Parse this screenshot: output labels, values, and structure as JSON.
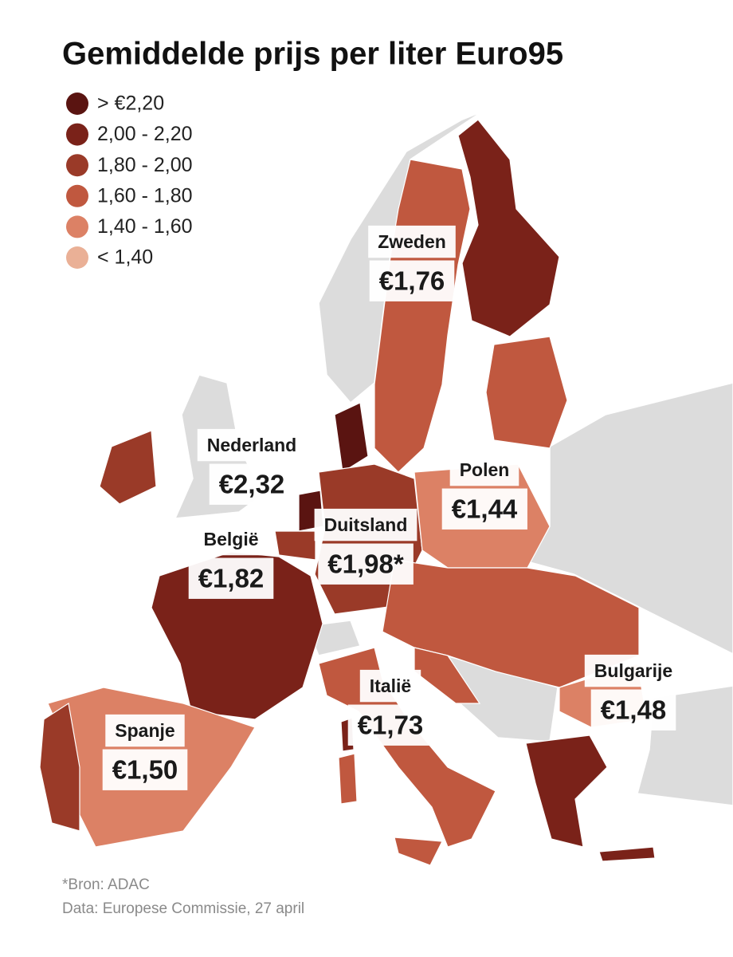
{
  "title": "Gemiddelde prijs per liter Euro95",
  "legend": [
    {
      "label": "> €2,20",
      "color": "#5a1411"
    },
    {
      "label": "2,00 - 2,20",
      "color": "#7a2219"
    },
    {
      "label": "1,80 - 2,00",
      "color": "#9a3a28"
    },
    {
      "label": "1,60 - 1,80",
      "color": "#c0583f"
    },
    {
      "label": "1,40 - 1,60",
      "color": "#dc8165"
    },
    {
      "label": "< 1,40",
      "color": "#eab096"
    }
  ],
  "labels": [
    {
      "country": "Zweden",
      "price": "€1,76"
    },
    {
      "country": "Nederland",
      "price": "€2,32"
    },
    {
      "country": "België",
      "price": "€1,82"
    },
    {
      "country": "Duitsland",
      "price": "€1,98*"
    },
    {
      "country": "Polen",
      "price": "€1,44"
    },
    {
      "country": "Italië",
      "price": "€1,73"
    },
    {
      "country": "Bulgarije",
      "price": "€1,48"
    },
    {
      "country": "Spanje",
      "price": "€1,50"
    }
  ],
  "footnotes": [
    "*Bron: ADAC",
    "Data: Europese Commissie, 27 april"
  ]
}
